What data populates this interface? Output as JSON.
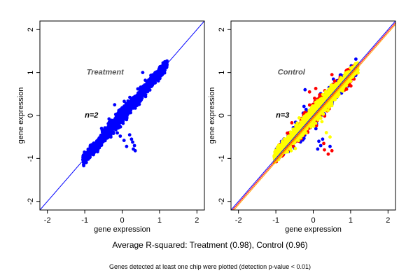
{
  "caption_main": "Average R-squared: Treatment (0.98), Control (0.96)",
  "caption_note": "Genes detected at least one chip were plotted (detection p-value < 0.01)",
  "chart_data": [
    {
      "type": "scatter",
      "panel_title": "Treatment",
      "n_label": "n=2",
      "xlabel": "gene expression",
      "ylabel": "gene expression",
      "xlim": [
        -2.2,
        2.2
      ],
      "ylim": [
        -2.2,
        2.2
      ],
      "xticks": [
        -2,
        -1,
        0,
        1,
        2
      ],
      "yticks": [
        -2,
        -1,
        0,
        1,
        2
      ],
      "grid": false,
      "reference_lines": [
        {
          "slope": 1,
          "intercept": 0,
          "color": "#0000ff"
        }
      ],
      "series": [
        {
          "color": "#0000ff",
          "cloud": {
            "x_range": [
              -1.05,
              1.2
            ],
            "slope": 1.0,
            "spread": 0.09,
            "count": 1500
          },
          "outliers": [
            [
              0.28,
              -0.62
            ],
            [
              0.33,
              -0.7
            ],
            [
              0.3,
              -0.78
            ],
            [
              0.35,
              -0.82
            ],
            [
              0.12,
              -0.72
            ],
            [
              0.25,
              -0.55
            ],
            [
              -0.05,
              -0.48
            ],
            [
              0.05,
              -0.58
            ],
            [
              -0.35,
              -0.08
            ],
            [
              -0.2,
              0.25
            ],
            [
              0.42,
              0.62
            ],
            [
              0.55,
              1.0
            ],
            [
              0.62,
              0.82
            ],
            [
              -0.55,
              -0.3
            ],
            [
              0.2,
              -0.45
            ]
          ]
        }
      ]
    },
    {
      "type": "scatter",
      "panel_title": "Control",
      "n_label": "n=3",
      "xlabel": "gene expression",
      "ylabel": "gene expression",
      "xlim": [
        -2.2,
        2.2
      ],
      "ylim": [
        -2.2,
        2.2
      ],
      "xticks": [
        -2,
        -1,
        0,
        1,
        2
      ],
      "yticks": [
        -2,
        -1,
        0,
        1,
        2
      ],
      "grid": false,
      "reference_lines": [
        {
          "slope": 1,
          "intercept": 0,
          "color": "#0000ff"
        },
        {
          "slope": 1.0,
          "intercept": -0.04,
          "color": "#ff0000"
        },
        {
          "slope": 1.0,
          "intercept": -0.08,
          "color": "#ffa500"
        }
      ],
      "series": [
        {
          "color": "#0000ff",
          "cloud": {
            "x_range": [
              -1.0,
              1.15
            ],
            "slope": 0.95,
            "spread": 0.14,
            "count": 500
          },
          "outliers": [
            [
              -0.22,
              0.6
            ],
            [
              0.25,
              -0.55
            ],
            [
              0.2,
              -0.7
            ],
            [
              0.12,
              -0.78
            ],
            [
              0.45,
              -0.72
            ],
            [
              0.55,
              0.62
            ],
            [
              0.15,
              -0.6
            ]
          ]
        },
        {
          "color": "#ff0000",
          "cloud": {
            "x_range": [
              -1.0,
              1.15
            ],
            "slope": 0.95,
            "spread": 0.15,
            "count": 500
          },
          "outliers": [
            [
              -0.1,
              0.55
            ],
            [
              0.3,
              -0.8
            ],
            [
              0.5,
              -0.82
            ],
            [
              0.4,
              -0.9
            ],
            [
              0.9,
              0.95
            ],
            [
              0.85,
              0.68
            ],
            [
              0.5,
              0.95
            ],
            [
              0.28,
              -0.65
            ]
          ]
        },
        {
          "color": "#ffff00",
          "cloud": {
            "x_range": [
              -1.05,
              1.2
            ],
            "slope": 0.95,
            "spread": 0.11,
            "count": 1400
          },
          "outliers": [
            [
              0.45,
              -0.5
            ],
            [
              0.35,
              -0.4
            ]
          ]
        }
      ]
    }
  ]
}
